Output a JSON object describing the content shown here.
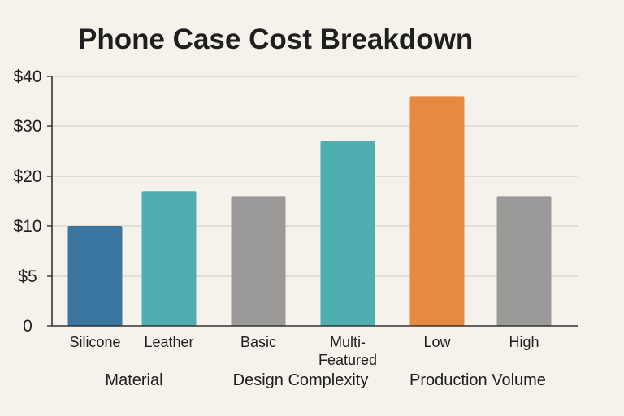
{
  "chart_data": {
    "type": "bar",
    "title": "Phone Case Cost Breakdown",
    "xlabel": "",
    "ylabel": "",
    "yticks": [
      {
        "value": 0,
        "label": "0"
      },
      {
        "value": 5,
        "label": "$5"
      },
      {
        "value": 10,
        "label": "$10"
      },
      {
        "value": 20,
        "label": "$20"
      },
      {
        "value": 30,
        "label": "$30"
      },
      {
        "value": 40,
        "label": "$40"
      }
    ],
    "grid": true,
    "bars": [
      {
        "category": "Silicone",
        "value": 10,
        "color": "#3b76a0"
      },
      {
        "category": "Leather",
        "value": 17,
        "color": "#4eaeb0"
      },
      {
        "category": "Basic",
        "value": 16,
        "color": "#9b9a98"
      },
      {
        "category": "Multi-\nFeatured",
        "value": 27,
        "color": "#4eaeb0"
      },
      {
        "category": "Low",
        "value": 36,
        "color": "#e68a41"
      },
      {
        "category": "High",
        "value": 16,
        "color": "#9b9a98"
      }
    ],
    "groups": [
      {
        "label": "Material",
        "bars": [
          0,
          1
        ]
      },
      {
        "label": "Design Complexity",
        "bars": [
          2,
          3
        ]
      },
      {
        "label": "Production Volume",
        "bars": [
          4,
          5
        ]
      }
    ]
  }
}
